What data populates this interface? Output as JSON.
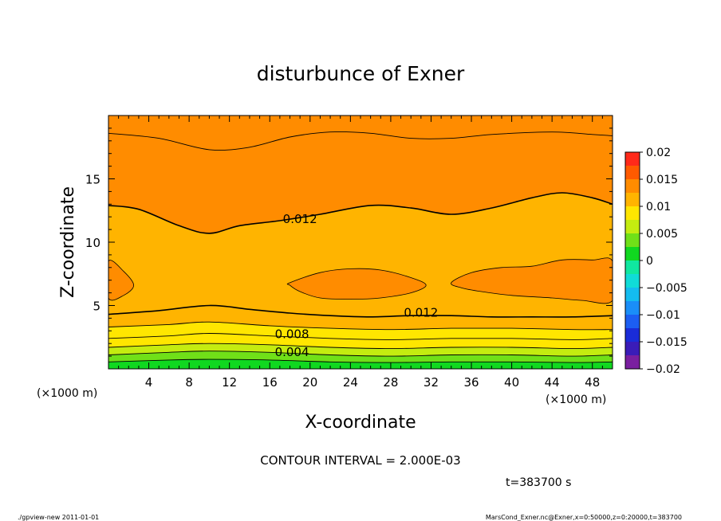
{
  "chart_data": {
    "type": "heatmap",
    "subtype": "filled-contour",
    "title": "disturbunce of Exner",
    "xlabel": "X-coordinate",
    "ylabel": "Z-coordinate",
    "x_unit_left": "(×1000 m)",
    "x_unit_right": "(×1000 m)",
    "xlim": [
      0,
      50
    ],
    "ylim": [
      0,
      20
    ],
    "x_ticks": [
      4,
      8,
      12,
      16,
      20,
      24,
      28,
      32,
      36,
      40,
      44,
      48
    ],
    "y_ticks": [
      5,
      10,
      15
    ],
    "contour_interval_text": "CONTOUR INTERVAL = 2.000E-03",
    "time_text": "t=383700 s",
    "colorbar": {
      "levels": [
        -0.02,
        -0.0175,
        -0.015,
        -0.0125,
        -0.01,
        -0.0075,
        -0.005,
        -0.0025,
        0,
        0.0025,
        0.005,
        0.0075,
        0.01,
        0.0125,
        0.015,
        0.0175,
        0.02
      ],
      "colors": [
        "#7a1fa0",
        "#3a1cb8",
        "#1a2cd8",
        "#1c5ef2",
        "#1a8ef8",
        "#14bcf0",
        "#10dcd8",
        "#10e8a0",
        "#10d820",
        "#70e018",
        "#c4ec10",
        "#ffe600",
        "#ffb400",
        "#ff8c00",
        "#ff5a00",
        "#ff2a1a",
        "#ff7070"
      ],
      "tick_values": [
        0.02,
        0.015,
        0.01,
        0.005,
        0,
        -0.005,
        -0.01,
        -0.015,
        -0.02
      ],
      "tick_labels": [
        "0.02",
        "0.015",
        "0.01",
        "0.005",
        "0",
        "−0.005",
        "−0.01",
        "−0.015",
        "−0.02"
      ]
    },
    "contour_labels": [
      {
        "text": "0.012",
        "x": 19,
        "z": 11.8
      },
      {
        "text": "0.012",
        "x": 31,
        "z": 4.4
      },
      {
        "text": "0.008",
        "x": 18.2,
        "z": 2.7
      },
      {
        "text": "0.004",
        "x": 18.2,
        "z": 1.3
      }
    ],
    "contour_lines": [
      {
        "level": 0.012,
        "points": [
          [
            0,
            12.9
          ],
          [
            3,
            12.6
          ],
          [
            7,
            11.3
          ],
          [
            10,
            10.7
          ],
          [
            13,
            11.3
          ],
          [
            17,
            11.7
          ],
          [
            21,
            12.2
          ],
          [
            26,
            12.9
          ],
          [
            30,
            12.7
          ],
          [
            34,
            12.2
          ],
          [
            38,
            12.7
          ],
          [
            42,
            13.5
          ],
          [
            45,
            13.9
          ],
          [
            48,
            13.5
          ],
          [
            50,
            13.0
          ]
        ]
      },
      {
        "level": 0.012,
        "points": [
          [
            0,
            4.3
          ],
          [
            5,
            4.6
          ],
          [
            10,
            5.0
          ],
          [
            14,
            4.7
          ],
          [
            18,
            4.4
          ],
          [
            22,
            4.2
          ],
          [
            26,
            4.1
          ],
          [
            30,
            4.2
          ],
          [
            34,
            4.2
          ],
          [
            38,
            4.1
          ],
          [
            42,
            4.1
          ],
          [
            46,
            4.1
          ],
          [
            50,
            4.2
          ]
        ]
      },
      {
        "level": 0.014,
        "points": [
          [
            0,
            18.6
          ],
          [
            5,
            18.2
          ],
          [
            10,
            17.3
          ],
          [
            14,
            17.5
          ],
          [
            18,
            18.3
          ],
          [
            22,
            18.7
          ],
          [
            26,
            18.6
          ],
          [
            30,
            18.2
          ],
          [
            34,
            18.2
          ],
          [
            38,
            18.5
          ],
          [
            44,
            18.7
          ],
          [
            48,
            18.5
          ],
          [
            50,
            18.4
          ]
        ]
      },
      {
        "level": 0.01,
        "points": [
          [
            0,
            3.3
          ],
          [
            6,
            3.5
          ],
          [
            10,
            3.7
          ],
          [
            16,
            3.4
          ],
          [
            22,
            3.2
          ],
          [
            28,
            3.1
          ],
          [
            34,
            3.2
          ],
          [
            40,
            3.2
          ],
          [
            46,
            3.1
          ],
          [
            50,
            3.1
          ]
        ]
      },
      {
        "level": 0.008,
        "points": [
          [
            0,
            2.4
          ],
          [
            6,
            2.6
          ],
          [
            10,
            2.8
          ],
          [
            16,
            2.6
          ],
          [
            22,
            2.4
          ],
          [
            28,
            2.3
          ],
          [
            34,
            2.4
          ],
          [
            40,
            2.4
          ],
          [
            46,
            2.3
          ],
          [
            50,
            2.4
          ]
        ]
      },
      {
        "level": 0.006,
        "points": [
          [
            0,
            1.7
          ],
          [
            6,
            1.9
          ],
          [
            10,
            2.0
          ],
          [
            16,
            1.9
          ],
          [
            22,
            1.7
          ],
          [
            28,
            1.6
          ],
          [
            34,
            1.7
          ],
          [
            40,
            1.7
          ],
          [
            46,
            1.6
          ],
          [
            50,
            1.7
          ]
        ]
      },
      {
        "level": 0.004,
        "points": [
          [
            0,
            1.1
          ],
          [
            6,
            1.3
          ],
          [
            10,
            1.4
          ],
          [
            16,
            1.3
          ],
          [
            22,
            1.1
          ],
          [
            28,
            1.0
          ],
          [
            34,
            1.1
          ],
          [
            40,
            1.1
          ],
          [
            46,
            1.0
          ],
          [
            50,
            1.1
          ]
        ]
      },
      {
        "level": 0.002,
        "points": [
          [
            0,
            0.55
          ],
          [
            6,
            0.7
          ],
          [
            10,
            0.75
          ],
          [
            16,
            0.7
          ],
          [
            22,
            0.55
          ],
          [
            28,
            0.5
          ],
          [
            34,
            0.55
          ],
          [
            40,
            0.55
          ],
          [
            46,
            0.5
          ],
          [
            50,
            0.55
          ]
        ]
      }
    ],
    "closed_contours": [
      {
        "level": 0.014,
        "points": [
          [
            0,
            8.5
          ],
          [
            1.5,
            7.7
          ],
          [
            2.5,
            6.6
          ],
          [
            1.5,
            5.8
          ],
          [
            0,
            5.6
          ]
        ]
      },
      {
        "level": 0.014,
        "points": [
          [
            18,
            6.8
          ],
          [
            21,
            7.6
          ],
          [
            24,
            7.9
          ],
          [
            27,
            7.8
          ],
          [
            30,
            7.2
          ],
          [
            31.5,
            6.6
          ],
          [
            30,
            6.0
          ],
          [
            27,
            5.6
          ],
          [
            24,
            5.5
          ],
          [
            21,
            5.6
          ],
          [
            19,
            6.1
          ],
          [
            18,
            6.6
          ]
        ]
      },
      {
        "level": 0.014,
        "points": [
          [
            34,
            6.8
          ],
          [
            36,
            7.6
          ],
          [
            39,
            8.0
          ],
          [
            42,
            8.1
          ],
          [
            45,
            8.6
          ],
          [
            48,
            8.6
          ],
          [
            50,
            8.5
          ],
          [
            50,
            5.4
          ],
          [
            47,
            5.4
          ],
          [
            44,
            5.6
          ],
          [
            40,
            5.8
          ],
          [
            37,
            6.1
          ],
          [
            35,
            6.4
          ]
        ]
      }
    ]
  },
  "footer": {
    "left": "./gpview-new   2011-01-01",
    "right": "MarsCond_Exner.nc@Exner,x=0:50000,z=0:20000,t=383700"
  }
}
